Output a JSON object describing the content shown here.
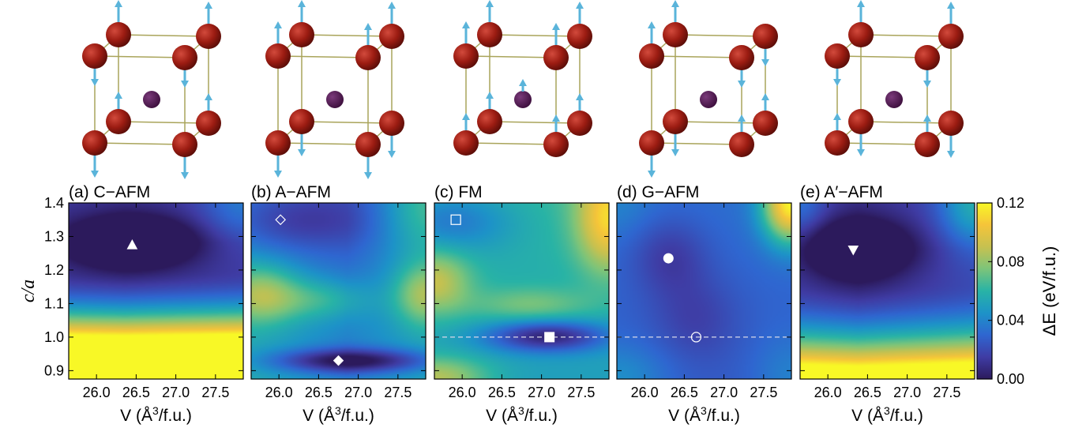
{
  "chart_data": {
    "type": "heatmap",
    "xlabel": "V (Å³/f.u.)",
    "xlabel_parts": {
      "base": "V (Å",
      "sup": "3",
      "tail": "/f.u.)"
    },
    "ylabel": "c/a",
    "xlim": [
      25.65,
      27.85
    ],
    "ylim": [
      0.875,
      1.4
    ],
    "xticks": [
      26.0,
      26.5,
      27.0,
      27.5
    ],
    "xtick_labels": [
      "26.0",
      "26.5",
      "27.0",
      "27.5"
    ],
    "yticks": [
      0.9,
      1.0,
      1.1,
      1.2,
      1.3,
      1.4
    ],
    "ytick_labels": [
      "0.9",
      "1.0",
      "1.1",
      "1.2",
      "1.3",
      "1.4"
    ],
    "colorbar": {
      "label": "ΔE (eV/f.u.)",
      "range": [
        0.0,
        0.12
      ],
      "ticks": [
        0.0,
        0.04,
        0.08,
        0.12
      ],
      "tick_labels": [
        "0.00",
        "0.04",
        "0.08",
        "0.12"
      ],
      "colormap": [
        "#2c1a5c",
        "#3f3ca4",
        "#2f66d0",
        "#1d93c8",
        "#28b3a6",
        "#7cc47a",
        "#c6c150",
        "#f5c43a",
        "#f8f826"
      ]
    },
    "panels": [
      {
        "title": "(a) C−AFM",
        "magnetic_order": "C-AFM",
        "minima": [
          {
            "V": 26.45,
            "c_over_a": 1.275,
            "marker": "triangle-up",
            "filled": true
          }
        ],
        "dashed_line_y": null
      },
      {
        "title": "(b) A−AFM",
        "magnetic_order": "A-AFM",
        "minima": [
          {
            "V": 26.02,
            "c_over_a": 1.35,
            "marker": "diamond",
            "filled": false
          },
          {
            "V": 26.75,
            "c_over_a": 0.93,
            "marker": "diamond",
            "filled": true
          }
        ],
        "dashed_line_y": null
      },
      {
        "title": "(c) FM",
        "magnetic_order": "FM",
        "minima": [
          {
            "V": 25.92,
            "c_over_a": 1.35,
            "marker": "square",
            "filled": false
          },
          {
            "V": 27.1,
            "c_over_a": 1.0,
            "marker": "square",
            "filled": true
          }
        ],
        "dashed_line_y": 1.0
      },
      {
        "title": "(d) G−AFM",
        "magnetic_order": "G-AFM",
        "minima": [
          {
            "V": 26.3,
            "c_over_a": 1.235,
            "marker": "circle",
            "filled": true
          },
          {
            "V": 26.65,
            "c_over_a": 1.0,
            "marker": "circle",
            "filled": false
          }
        ],
        "dashed_line_y": 1.0
      },
      {
        "title": "(e) A′−AFM",
        "magnetic_order": "A'-AFM",
        "minima": [
          {
            "V": 26.32,
            "c_over_a": 1.26,
            "marker": "triangle-down",
            "filled": true
          }
        ],
        "dashed_line_y": null
      }
    ],
    "structures": {
      "corner_atom_color": "#9c1c12",
      "center_atom_color": "#3d0f3d",
      "spin_arrow_color": "#5ab4da",
      "bond_color": "#a9a45a",
      "spin_patterns": [
        {
          "panel": "(a)",
          "top": [
            "up",
            "up",
            "down",
            "down"
          ],
          "bottom": [
            "up",
            "up",
            "down",
            "down"
          ],
          "center": "none"
        },
        {
          "panel": "(b)",
          "top": [
            "up",
            "up",
            "up",
            "up"
          ],
          "bottom": [
            "down",
            "down",
            "down",
            "down"
          ],
          "center": "none"
        },
        {
          "panel": "(c)",
          "top": [
            "up",
            "up",
            "up",
            "up"
          ],
          "bottom": [
            "up",
            "up",
            "up",
            "up"
          ],
          "center": "up"
        },
        {
          "panel": "(d)",
          "top": [
            "up",
            "down",
            "up",
            "down"
          ],
          "bottom": [
            "down",
            "up",
            "down",
            "up"
          ],
          "center": "none"
        },
        {
          "panel": "(e)",
          "top": [
            "up",
            "up",
            "down",
            "down"
          ],
          "bottom": [
            "down",
            "down",
            "up",
            "up"
          ],
          "center": "none"
        }
      ]
    }
  }
}
